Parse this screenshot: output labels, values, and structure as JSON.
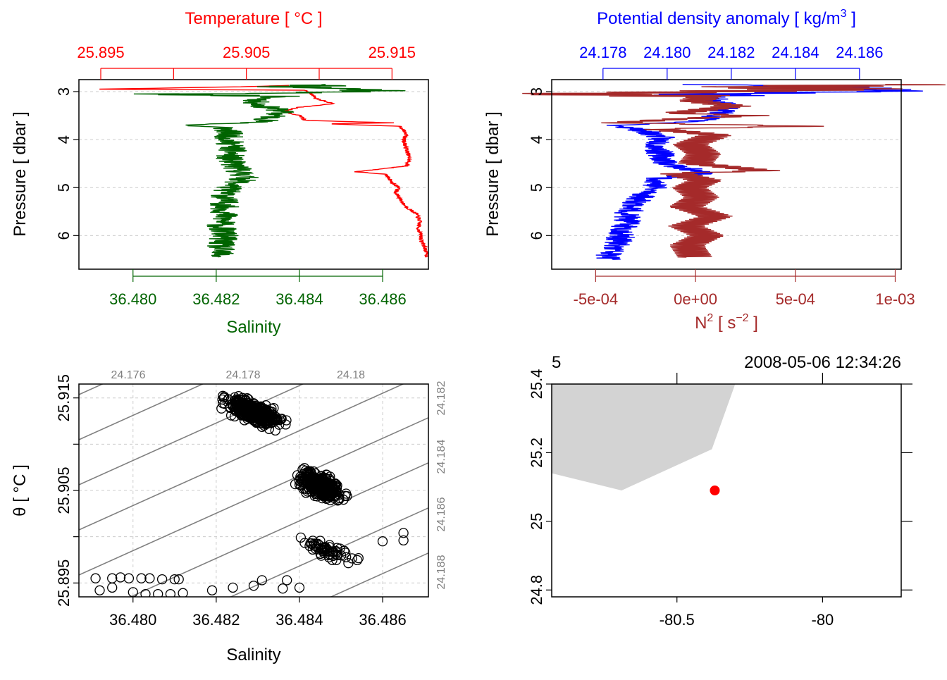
{
  "chart_data": [
    {
      "type": "line",
      "panel": "temperature-salinity-profile",
      "top_axis_label": "Temperature [ °C ]",
      "top_ticks": [
        25.895,
        25.9,
        25.905,
        25.91,
        25.915
      ],
      "top_tick_labels": [
        "25.895",
        "",
        "25.905",
        "",
        "25.915"
      ],
      "bottom_axis_label": "Salinity",
      "bottom_ticks": [
        "36.480",
        "36.482",
        "36.484",
        "36.486"
      ],
      "ylabel": "Pressure [ dbar ]",
      "y_ticks": [
        "3",
        "4",
        "5",
        "6"
      ],
      "ylim": [
        6.7,
        2.75
      ],
      "temperature_range": [
        25.8935,
        25.9175
      ],
      "salinity_range": [
        36.4787,
        36.4871
      ],
      "grid": true,
      "series": [
        {
          "name": "Temperature",
          "color": "#ff0000",
          "points": [
            [
              2.87,
              25.908
            ],
            [
              2.9,
              25.9045
            ],
            [
              2.93,
              25.8985
            ],
            [
              2.95,
              25.8945
            ],
            [
              2.97,
              25.909
            ],
            [
              3.0,
              25.9092
            ],
            [
              3.05,
              25.9095
            ],
            [
              3.15,
              25.9098
            ],
            [
              3.2,
              25.9104
            ],
            [
              3.25,
              25.911
            ],
            [
              3.33,
              25.9085
            ],
            [
              3.42,
              25.9075
            ],
            [
              3.5,
              25.9087
            ],
            [
              3.6,
              25.909
            ],
            [
              3.65,
              25.915
            ],
            [
              3.67,
              25.9105
            ],
            [
              3.72,
              25.9155
            ],
            [
              3.8,
              25.9158
            ],
            [
              3.9,
              25.916
            ],
            [
              4.0,
              25.9158
            ],
            [
              4.2,
              25.916
            ],
            [
              4.4,
              25.9162
            ],
            [
              4.55,
              25.916
            ],
            [
              4.62,
              25.914
            ],
            [
              4.67,
              25.9125
            ],
            [
              4.72,
              25.9145
            ],
            [
              4.8,
              25.9148
            ],
            [
              4.9,
              25.915
            ],
            [
              5.0,
              25.9155
            ],
            [
              5.1,
              25.9152
            ],
            [
              5.2,
              25.9155
            ],
            [
              5.35,
              25.9158
            ],
            [
              5.45,
              25.9162
            ],
            [
              5.55,
              25.9167
            ],
            [
              5.7,
              25.9169
            ],
            [
              5.85,
              25.9168
            ],
            [
              6.0,
              25.917
            ],
            [
              6.1,
              25.917
            ],
            [
              6.2,
              25.9172
            ],
            [
              6.3,
              25.9173
            ],
            [
              6.4,
              25.9174
            ],
            [
              6.45,
              25.9174
            ]
          ]
        },
        {
          "name": "Salinity",
          "color": "#006400",
          "points": [
            [
              2.85,
              36.4852
            ],
            [
              2.9,
              36.4838
            ],
            [
              2.95,
              36.4855
            ],
            [
              3.0,
              36.4862
            ],
            [
              3.05,
              36.4808
            ],
            [
              3.1,
              36.4834
            ],
            [
              3.2,
              36.4829
            ],
            [
              3.3,
              36.4831
            ],
            [
              3.4,
              36.4836
            ],
            [
              3.5,
              36.4834
            ],
            [
              3.6,
              36.4832
            ],
            [
              3.65,
              36.4828
            ],
            [
              3.7,
              36.4812
            ],
            [
              3.75,
              36.4822
            ],
            [
              3.85,
              36.4823
            ],
            [
              4.0,
              36.4823
            ],
            [
              4.2,
              36.4824
            ],
            [
              4.4,
              36.4823
            ],
            [
              4.6,
              36.4825
            ],
            [
              4.8,
              36.4827
            ],
            [
              5.0,
              36.4823
            ],
            [
              5.2,
              36.4822
            ],
            [
              5.4,
              36.4822
            ],
            [
              5.6,
              36.4822
            ],
            [
              5.8,
              36.4821
            ],
            [
              6.0,
              36.4822
            ],
            [
              6.2,
              36.4821
            ],
            [
              6.4,
              36.4821
            ],
            [
              6.45,
              36.4821
            ]
          ]
        }
      ]
    },
    {
      "type": "line",
      "panel": "density-n2-profile",
      "top_axis_label_main": "Potential density anomaly [ kg/m",
      "top_axis_label_sup": "3",
      "top_axis_label_end": " ]",
      "top_ticks": [
        "24.178",
        "24.180",
        "24.182",
        "24.184",
        "24.186"
      ],
      "sigma_range": [
        24.1764,
        24.1873
      ],
      "bottom_axis_label_main": "N",
      "bottom_axis_label_sup1": "2",
      "bottom_axis_label_mid": " [ s",
      "bottom_axis_label_sup2": "−2",
      "bottom_axis_label_end": " ]",
      "bottom_ticks": [
        -0.0005,
        0,
        0.0005,
        0.001
      ],
      "bottom_tick_labels": [
        "-5e-04",
        "0e+00",
        "5e-04",
        "1e-03"
      ],
      "n2_range": [
        -0.00072,
        0.00103
      ],
      "ylabel": "Pressure [ dbar ]",
      "y_ticks": [
        "3",
        "4",
        "5",
        "6"
      ],
      "ylim": [
        6.7,
        2.75
      ],
      "grid": true,
      "series": [
        {
          "name": "Potential density anomaly",
          "color": "#0000ff",
          "points": [
            [
              2.85,
              24.1815
            ],
            [
              2.9,
              24.1845
            ],
            [
              2.95,
              24.187
            ],
            [
              3.0,
              24.1862
            ],
            [
              3.05,
              24.1812
            ],
            [
              3.15,
              24.1815
            ],
            [
              3.3,
              24.1818
            ],
            [
              3.45,
              24.1817
            ],
            [
              3.6,
              24.1812
            ],
            [
              3.7,
              24.1785
            ],
            [
              3.8,
              24.1792
            ],
            [
              3.95,
              24.1798
            ],
            [
              4.2,
              24.1797
            ],
            [
              4.5,
              24.18
            ],
            [
              4.7,
              24.1812
            ],
            [
              4.8,
              24.1798
            ],
            [
              5.0,
              24.1796
            ],
            [
              5.2,
              24.1792
            ],
            [
              5.5,
              24.1788
            ],
            [
              5.8,
              24.1787
            ],
            [
              6.1,
              24.1785
            ],
            [
              6.4,
              24.1782
            ],
            [
              6.5,
              24.1781
            ]
          ]
        },
        {
          "name": "N2",
          "color": "#a52a2a",
          "points": [
            [
              2.85,
              0.00095
            ],
            [
              2.9,
              0.0004
            ],
            [
              2.95,
              0.0007
            ],
            [
              3.0,
              0.0001
            ],
            [
              3.05,
              -0.00065
            ],
            [
              3.1,
              5e-05
            ],
            [
              3.2,
              0.0
            ],
            [
              3.3,
              0.0002
            ],
            [
              3.45,
              -0.0001
            ],
            [
              3.5,
              0.0003
            ],
            [
              3.55,
              0.0
            ],
            [
              3.65,
              -0.0004
            ],
            [
              3.72,
              0.00058
            ],
            [
              3.78,
              -0.0002
            ],
            [
              3.9,
              0.0001
            ],
            [
              4.1,
              -3e-05
            ],
            [
              4.3,
              4e-05
            ],
            [
              4.5,
              0.0
            ],
            [
              4.65,
              0.00035
            ],
            [
              4.7,
              -0.0001
            ],
            [
              4.85,
              5e-05
            ],
            [
              5.0,
              -3e-05
            ],
            [
              5.2,
              3e-05
            ],
            [
              5.4,
              -5e-05
            ],
            [
              5.6,
              0.0001
            ],
            [
              5.8,
              -5e-05
            ],
            [
              6.0,
              6e-05
            ],
            [
              6.2,
              -4e-05
            ],
            [
              6.45,
              0.0
            ]
          ]
        }
      ]
    },
    {
      "type": "scatter",
      "panel": "ts-diagram",
      "xlabel": "Salinity",
      "ylabel": "θ [ °C ]",
      "x_ticks": [
        "36.480",
        "36.482",
        "36.484",
        "36.486"
      ],
      "y_ticks": [
        "25.895",
        "25.905",
        "25.915"
      ],
      "xlim": [
        36.4787,
        36.4871
      ],
      "ylim": [
        25.8935,
        25.9165
      ],
      "grid": true,
      "isopycnal_labels_top": [
        "24.176",
        "24.178",
        "24.18"
      ],
      "isopycnal_labels_right": [
        "24.182",
        "24.184",
        "24.186",
        "24.188"
      ],
      "isopycnal_color": "#808080",
      "point_clusters": [
        {
          "s_center": 36.4829,
          "t_center": 25.9135,
          "s_spread": 0.0009,
          "t_spread": 0.0015,
          "n": 380
        },
        {
          "s_center": 36.4845,
          "t_center": 25.9055,
          "s_spread": 0.0007,
          "t_spread": 0.0018,
          "n": 300
        },
        {
          "s_center": 36.4847,
          "t_center": 25.8985,
          "s_spread": 0.0009,
          "t_spread": 0.0012,
          "n": 60
        }
      ],
      "points": [
        [
          36.4791,
          25.8955
        ],
        [
          36.4795,
          25.8955
        ],
        [
          36.4797,
          25.8956
        ],
        [
          36.4799,
          25.8955
        ],
        [
          36.4802,
          25.8955
        ],
        [
          36.4804,
          25.8955
        ],
        [
          36.4807,
          25.8954
        ],
        [
          36.481,
          25.8954
        ],
        [
          36.4811,
          25.8954
        ],
        [
          36.4792,
          25.8942
        ],
        [
          36.4795,
          25.8945
        ],
        [
          36.48,
          25.894
        ],
        [
          36.4803,
          25.8938
        ],
        [
          36.4806,
          25.8938
        ],
        [
          36.4809,
          25.8938
        ],
        [
          36.4812,
          25.8939
        ],
        [
          36.4819,
          25.8942
        ],
        [
          36.4824,
          25.8945
        ],
        [
          36.4829,
          25.8947
        ],
        [
          36.4836,
          25.8944
        ],
        [
          36.484,
          25.8945
        ],
        [
          36.4831,
          25.8953
        ],
        [
          36.4837,
          25.8953
        ],
        [
          36.486,
          25.8995
        ],
        [
          36.4865,
          25.9004
        ],
        [
          36.4865,
          25.8996
        ]
      ]
    },
    {
      "type": "scatter",
      "panel": "map",
      "top_labels": [
        "5",
        "2008-05-06 12:34:26"
      ],
      "x_ticks": [
        -80.5,
        -80
      ],
      "x_tick_labels": [
        "-80.5",
        "-80"
      ],
      "y_ticks": [
        24.8,
        25.0,
        25.2,
        25.4
      ],
      "y_tick_labels": [
        "24.8",
        "25",
        "25.2",
        "25.4"
      ],
      "xlim": [
        -80.93,
        -79.73
      ],
      "ylim": [
        24.78,
        25.4
      ],
      "land_color": "#d3d3d3",
      "land_polygon": [
        [
          -80.93,
          25.4
        ],
        [
          -80.3,
          25.4
        ],
        [
          -80.38,
          25.21
        ],
        [
          -80.69,
          25.09
        ],
        [
          -80.93,
          25.14
        ]
      ],
      "station": {
        "lon": -80.37,
        "lat": 25.09,
        "color": "#ff0000"
      }
    }
  ]
}
